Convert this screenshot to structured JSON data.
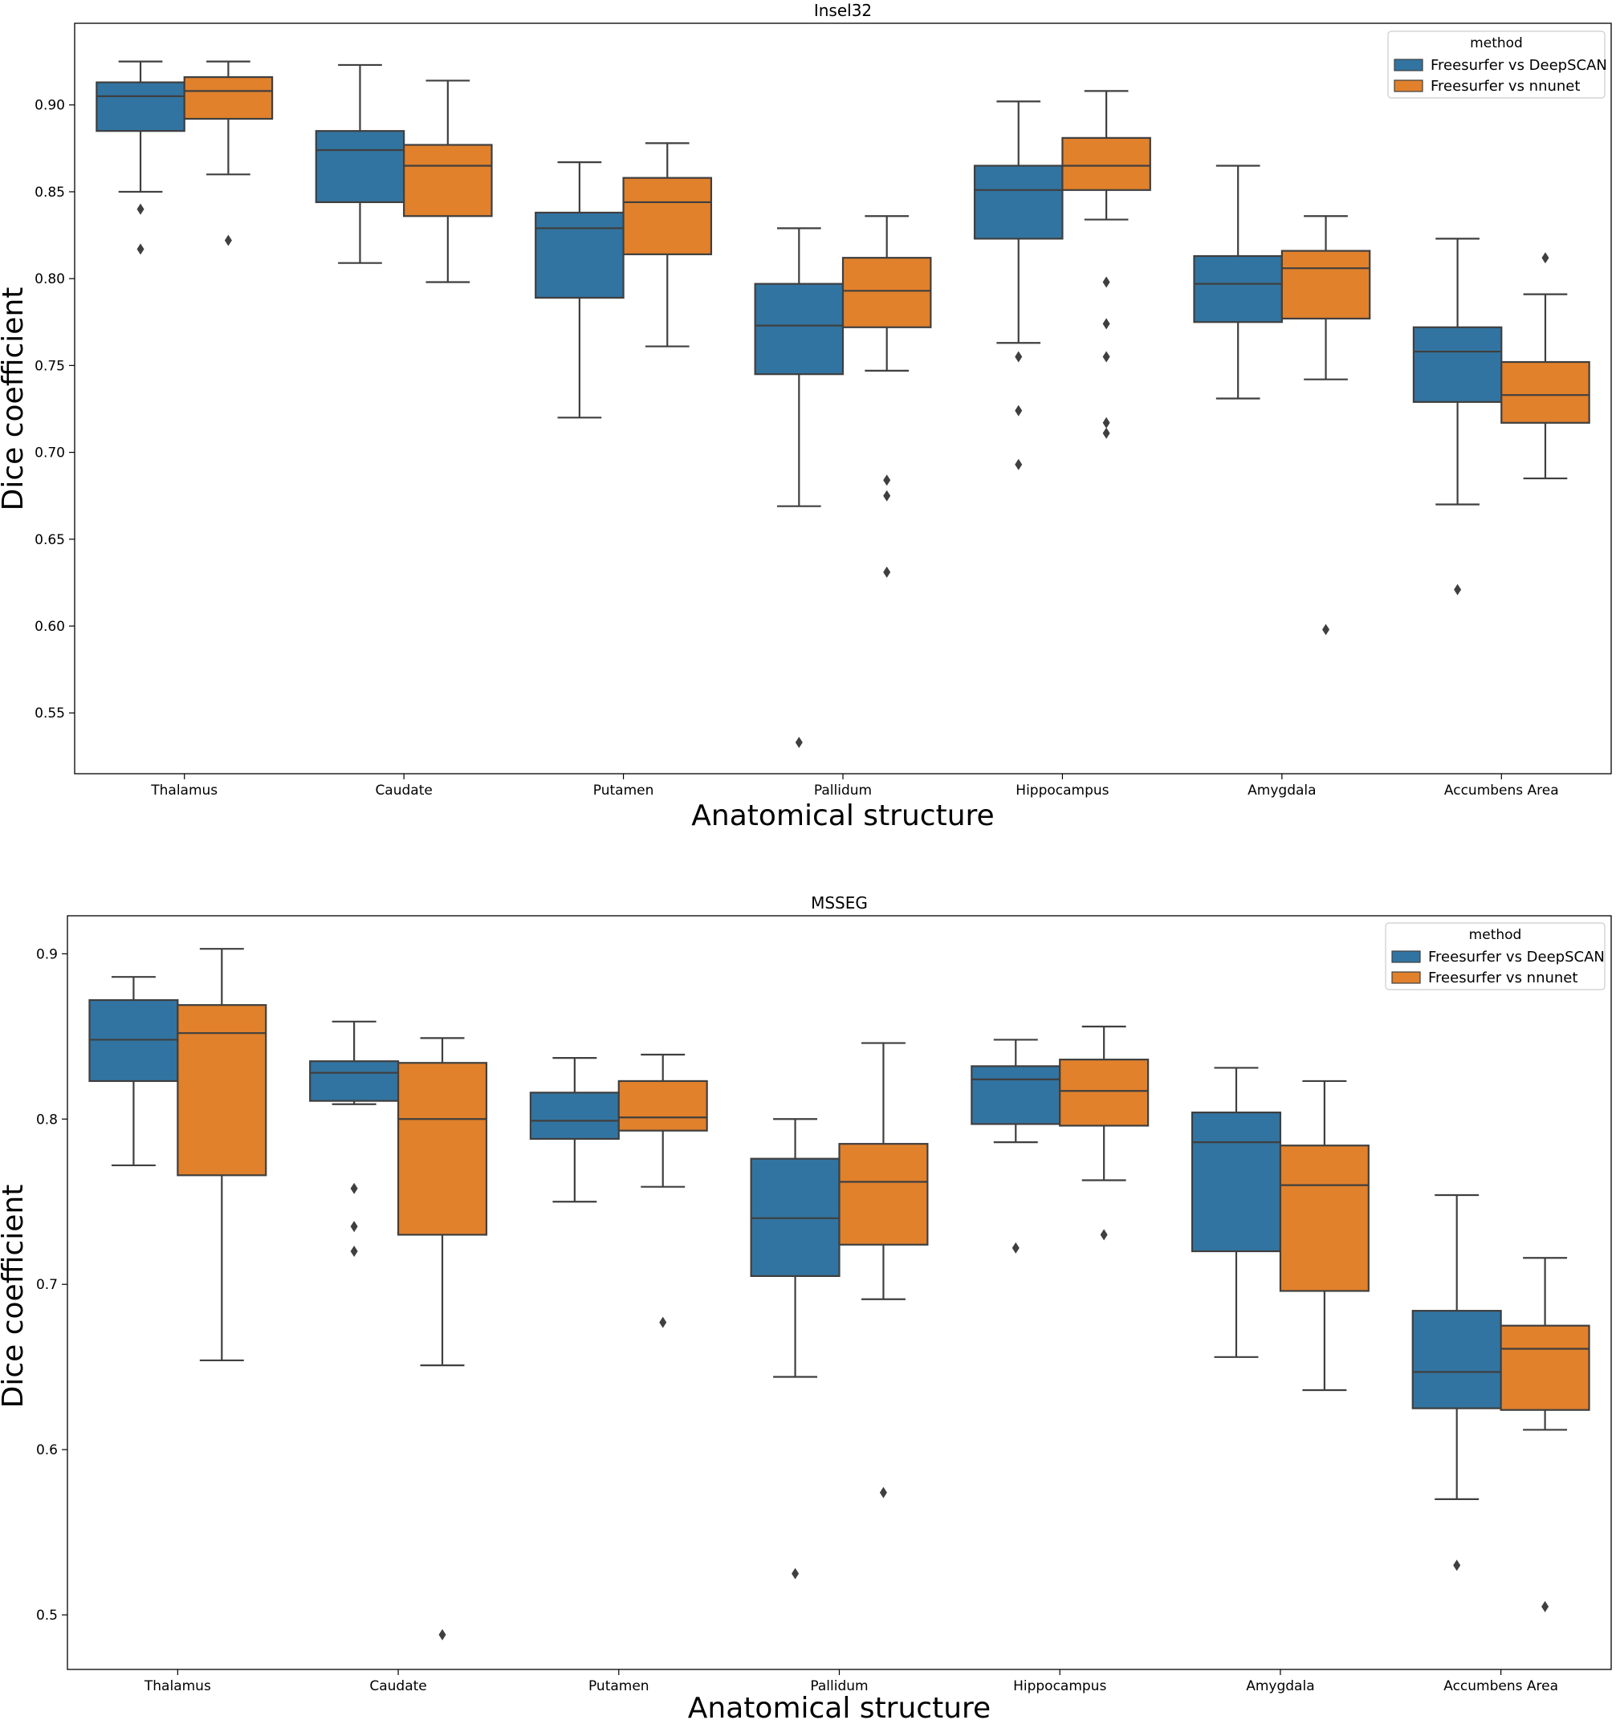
{
  "colors": {
    "series0": "#3274A1",
    "series1": "#E1812C",
    "line": "#3F3F3F",
    "frame": "#000000"
  },
  "chart_data": [
    {
      "type": "boxplot",
      "title": "Insel32",
      "xlabel": "Anatomical structure",
      "ylabel": "Dice coefficient",
      "ylim": [
        0.515,
        0.947
      ],
      "yticks": [
        0.55,
        0.6,
        0.65,
        0.7,
        0.75,
        0.8,
        0.85,
        0.9
      ],
      "ytick_labels": [
        "0.55",
        "0.60",
        "0.65",
        "0.70",
        "0.75",
        "0.80",
        "0.85",
        "0.90"
      ],
      "categories": [
        "Thalamus",
        "Caudate",
        "Putamen",
        "Pallidum",
        "Hippocampus",
        "Amygdala",
        "Accumbens Area"
      ],
      "legend": {
        "title": "method",
        "position": "top-right"
      },
      "series": [
        {
          "name": "Freesurfer vs DeepSCAN",
          "boxes": [
            {
              "whislo": 0.85,
              "q1": 0.885,
              "med": 0.905,
              "q3": 0.913,
              "whishi": 0.925,
              "fliers": [
                0.84,
                0.817
              ]
            },
            {
              "whislo": 0.809,
              "q1": 0.844,
              "med": 0.874,
              "q3": 0.885,
              "whishi": 0.923,
              "fliers": []
            },
            {
              "whislo": 0.72,
              "q1": 0.789,
              "med": 0.829,
              "q3": 0.838,
              "whishi": 0.867,
              "fliers": []
            },
            {
              "whislo": 0.669,
              "q1": 0.745,
              "med": 0.773,
              "q3": 0.797,
              "whishi": 0.829,
              "fliers": [
                0.533
              ]
            },
            {
              "whislo": 0.763,
              "q1": 0.823,
              "med": 0.851,
              "q3": 0.865,
              "whishi": 0.902,
              "fliers": [
                0.755,
                0.724,
                0.693
              ]
            },
            {
              "whislo": 0.731,
              "q1": 0.775,
              "med": 0.797,
              "q3": 0.813,
              "whishi": 0.865,
              "fliers": []
            },
            {
              "whislo": 0.67,
              "q1": 0.729,
              "med": 0.758,
              "q3": 0.772,
              "whishi": 0.823,
              "fliers": [
                0.621
              ]
            }
          ]
        },
        {
          "name": "Freesurfer vs nnunet",
          "boxes": [
            {
              "whislo": 0.86,
              "q1": 0.892,
              "med": 0.908,
              "q3": 0.916,
              "whishi": 0.925,
              "fliers": [
                0.822
              ]
            },
            {
              "whislo": 0.798,
              "q1": 0.836,
              "med": 0.865,
              "q3": 0.877,
              "whishi": 0.914,
              "fliers": []
            },
            {
              "whislo": 0.761,
              "q1": 0.814,
              "med": 0.844,
              "q3": 0.858,
              "whishi": 0.878,
              "fliers": []
            },
            {
              "whislo": 0.747,
              "q1": 0.772,
              "med": 0.793,
              "q3": 0.812,
              "whishi": 0.836,
              "fliers": [
                0.684,
                0.675,
                0.631
              ]
            },
            {
              "whislo": 0.834,
              "q1": 0.851,
              "med": 0.865,
              "q3": 0.881,
              "whishi": 0.908,
              "fliers": [
                0.798,
                0.774,
                0.755,
                0.717,
                0.711
              ]
            },
            {
              "whislo": 0.742,
              "q1": 0.777,
              "med": 0.806,
              "q3": 0.816,
              "whishi": 0.836,
              "fliers": [
                0.598
              ]
            },
            {
              "whislo": 0.685,
              "q1": 0.717,
              "med": 0.733,
              "q3": 0.752,
              "whishi": 0.791,
              "fliers": [
                0.812
              ]
            }
          ]
        }
      ]
    },
    {
      "type": "boxplot",
      "title": "MSSEG",
      "xlabel": "Anatomical structure",
      "ylabel": "Dice coefficient",
      "ylim": [
        0.467,
        0.923
      ],
      "yticks": [
        0.5,
        0.6,
        0.7,
        0.8,
        0.9
      ],
      "ytick_labels": [
        "0.5",
        "0.6",
        "0.7",
        "0.8",
        "0.9"
      ],
      "categories": [
        "Thalamus",
        "Caudate",
        "Putamen",
        "Pallidum",
        "Hippocampus",
        "Amygdala",
        "Accumbens Area"
      ],
      "legend": {
        "title": "method",
        "position": "top-right"
      },
      "series": [
        {
          "name": "Freesurfer vs DeepSCAN",
          "boxes": [
            {
              "whislo": 0.772,
              "q1": 0.823,
              "med": 0.848,
              "q3": 0.872,
              "whishi": 0.886,
              "fliers": []
            },
            {
              "whislo": 0.809,
              "q1": 0.811,
              "med": 0.828,
              "q3": 0.835,
              "whishi": 0.859,
              "fliers": [
                0.758,
                0.735,
                0.72
              ]
            },
            {
              "whislo": 0.75,
              "q1": 0.788,
              "med": 0.799,
              "q3": 0.816,
              "whishi": 0.837,
              "fliers": []
            },
            {
              "whislo": 0.644,
              "q1": 0.705,
              "med": 0.74,
              "q3": 0.776,
              "whishi": 0.8,
              "fliers": [
                0.525
              ]
            },
            {
              "whislo": 0.786,
              "q1": 0.797,
              "med": 0.824,
              "q3": 0.832,
              "whishi": 0.848,
              "fliers": [
                0.722
              ]
            },
            {
              "whislo": 0.656,
              "q1": 0.72,
              "med": 0.786,
              "q3": 0.804,
              "whishi": 0.831,
              "fliers": []
            },
            {
              "whislo": 0.57,
              "q1": 0.625,
              "med": 0.647,
              "q3": 0.684,
              "whishi": 0.754,
              "fliers": [
                0.53
              ]
            }
          ]
        },
        {
          "name": "Freesurfer vs nnunet",
          "boxes": [
            {
              "whislo": 0.654,
              "q1": 0.766,
              "med": 0.852,
              "q3": 0.869,
              "whishi": 0.903,
              "fliers": []
            },
            {
              "whislo": 0.651,
              "q1": 0.73,
              "med": 0.8,
              "q3": 0.834,
              "whishi": 0.849,
              "fliers": [
                0.488
              ]
            },
            {
              "whislo": 0.759,
              "q1": 0.793,
              "med": 0.801,
              "q3": 0.823,
              "whishi": 0.839,
              "fliers": [
                0.677
              ]
            },
            {
              "whislo": 0.691,
              "q1": 0.724,
              "med": 0.762,
              "q3": 0.785,
              "whishi": 0.846,
              "fliers": [
                0.574
              ]
            },
            {
              "whislo": 0.763,
              "q1": 0.796,
              "med": 0.817,
              "q3": 0.836,
              "whishi": 0.856,
              "fliers": [
                0.73
              ]
            },
            {
              "whislo": 0.636,
              "q1": 0.696,
              "med": 0.76,
              "q3": 0.784,
              "whishi": 0.823,
              "fliers": []
            },
            {
              "whislo": 0.612,
              "q1": 0.624,
              "med": 0.661,
              "q3": 0.675,
              "whishi": 0.716,
              "fliers": [
                0.505
              ]
            }
          ]
        }
      ]
    }
  ]
}
